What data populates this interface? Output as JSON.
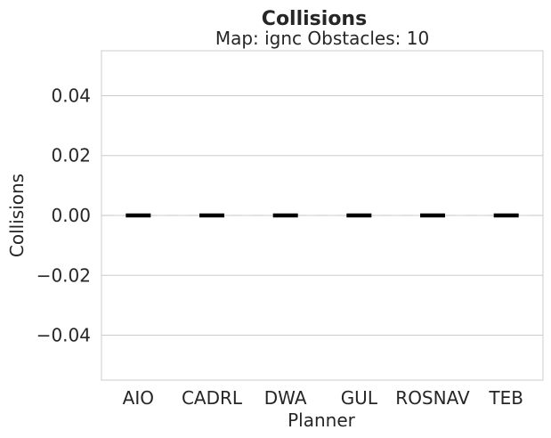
{
  "chart_data": {
    "type": "bar",
    "title": "Collisions",
    "subtitle": "Map: ignc Obstacles: 10",
    "xlabel": "Planner",
    "ylabel": "Collisions",
    "categories": [
      "AIO",
      "CADRL",
      "DWA",
      "GUL",
      "ROSNAV",
      "TEB"
    ],
    "values": [
      0.0,
      0.0,
      0.0,
      0.0,
      0.0,
      0.0
    ],
    "ylim": [
      -0.055,
      0.055
    ],
    "yticks": [
      0.04,
      0.02,
      0.0,
      -0.02,
      -0.04
    ],
    "ytick_labels": [
      "0.04",
      "0.02",
      "0.00",
      "−0.02",
      "−0.04"
    ],
    "grid": true,
    "reference_line": 0.0,
    "colors": {
      "grid": "#cccccc",
      "spine": "#cccccc",
      "median": "#000000",
      "reference": "#d9d9d9",
      "text": "#262626"
    }
  }
}
